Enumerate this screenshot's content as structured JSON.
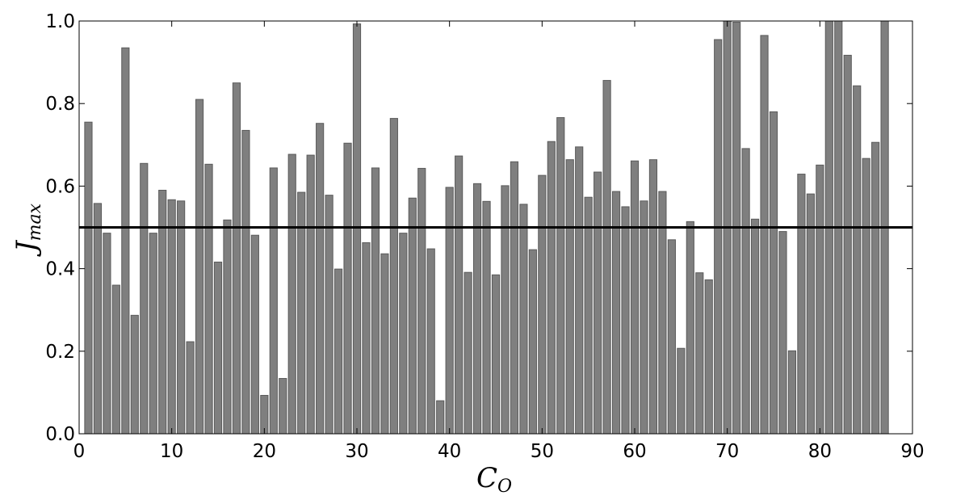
{
  "chart_data": {
    "type": "bar",
    "xlabel": "C",
    "xlabel_sub": "O",
    "ylabel": "J",
    "ylabel_sub": "max",
    "xlim": [
      0,
      90
    ],
    "ylim": [
      0,
      1.0
    ],
    "xticks": [
      0,
      10,
      20,
      30,
      40,
      50,
      60,
      70,
      80,
      90
    ],
    "yticks": [
      0.0,
      0.2,
      0.4,
      0.6,
      0.8,
      1.0
    ],
    "ytick_labels": [
      "0.0",
      "0.2",
      "0.4",
      "0.6",
      "0.8",
      "1.0"
    ],
    "threshold": 0.5,
    "grid": false,
    "bar_color": "#7f7f7f",
    "x": [
      1,
      2,
      3,
      4,
      5,
      6,
      7,
      8,
      9,
      10,
      11,
      12,
      13,
      14,
      15,
      16,
      17,
      18,
      19,
      20,
      21,
      22,
      23,
      24,
      25,
      26,
      27,
      28,
      29,
      30,
      31,
      32,
      33,
      34,
      35,
      36,
      37,
      38,
      39,
      40,
      41,
      42,
      43,
      44,
      45,
      46,
      47,
      48,
      49,
      50,
      51,
      52,
      53,
      54,
      55,
      56,
      57,
      58,
      59,
      60,
      61,
      62,
      63,
      64,
      65,
      66,
      67,
      68,
      69,
      70,
      71,
      72,
      73,
      74,
      75,
      76,
      77,
      78,
      79,
      80,
      81,
      82,
      83,
      84,
      85,
      86,
      87
    ],
    "values": [
      0.755,
      0.558,
      0.486,
      0.36,
      0.935,
      0.287,
      0.655,
      0.486,
      0.59,
      0.567,
      0.564,
      0.223,
      0.81,
      0.653,
      0.416,
      0.518,
      0.85,
      0.735,
      0.481,
      0.093,
      0.644,
      0.134,
      0.677,
      0.585,
      0.675,
      0.752,
      0.578,
      0.399,
      0.704,
      0.993,
      0.463,
      0.644,
      0.436,
      0.764,
      0.486,
      0.571,
      0.643,
      0.448,
      0.08,
      0.597,
      0.673,
      0.391,
      0.606,
      0.563,
      0.385,
      0.601,
      0.659,
      0.556,
      0.446,
      0.626,
      0.708,
      0.766,
      0.664,
      0.695,
      0.573,
      0.634,
      0.856,
      0.587,
      0.55,
      0.661,
      0.564,
      0.664,
      0.587,
      0.47,
      0.207,
      0.514,
      0.39,
      0.373,
      0.955,
      1.0,
      0.997,
      0.691,
      0.52,
      0.965,
      0.78,
      0.49,
      0.201,
      0.629,
      0.581,
      0.651,
      1.0,
      1.0,
      0.917,
      0.843,
      0.667,
      0.706,
      1.0
    ]
  }
}
